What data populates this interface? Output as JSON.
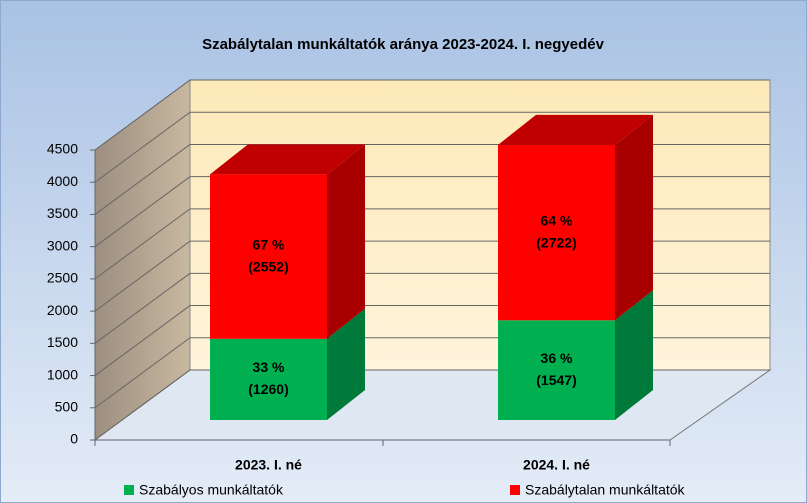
{
  "chart_data": {
    "type": "bar3d_stacked",
    "title": "Szabálytalan munkáltatók aránya 2023-2024. I. negyedév",
    "categories": [
      "2023. I. né",
      "2024. I. né"
    ],
    "series": [
      {
        "name": "Szabályos munkáltatók",
        "color": "#00b050",
        "side_color": "#007a3a",
        "values": [
          1260,
          1547
        ],
        "value_labels": [
          "(1260)",
          "(1547)"
        ],
        "shares": [
          33,
          36
        ],
        "share_labels": [
          "33 %",
          "36 %"
        ]
      },
      {
        "name": "Szabálytalan munkáltatók",
        "color": "#ff0000",
        "side_color": "#a80000",
        "values": [
          2552,
          2722
        ],
        "value_labels": [
          "(2552)",
          "(2722)"
        ],
        "shares": [
          67,
          64
        ],
        "share_labels": [
          "67 %",
          "64 %"
        ]
      }
    ],
    "ylim": [
      0,
      4500
    ],
    "yticks": [
      0,
      500,
      1000,
      1500,
      2000,
      2500,
      3000,
      3500,
      4000,
      4500
    ],
    "grid": true,
    "legend": "bottom"
  }
}
